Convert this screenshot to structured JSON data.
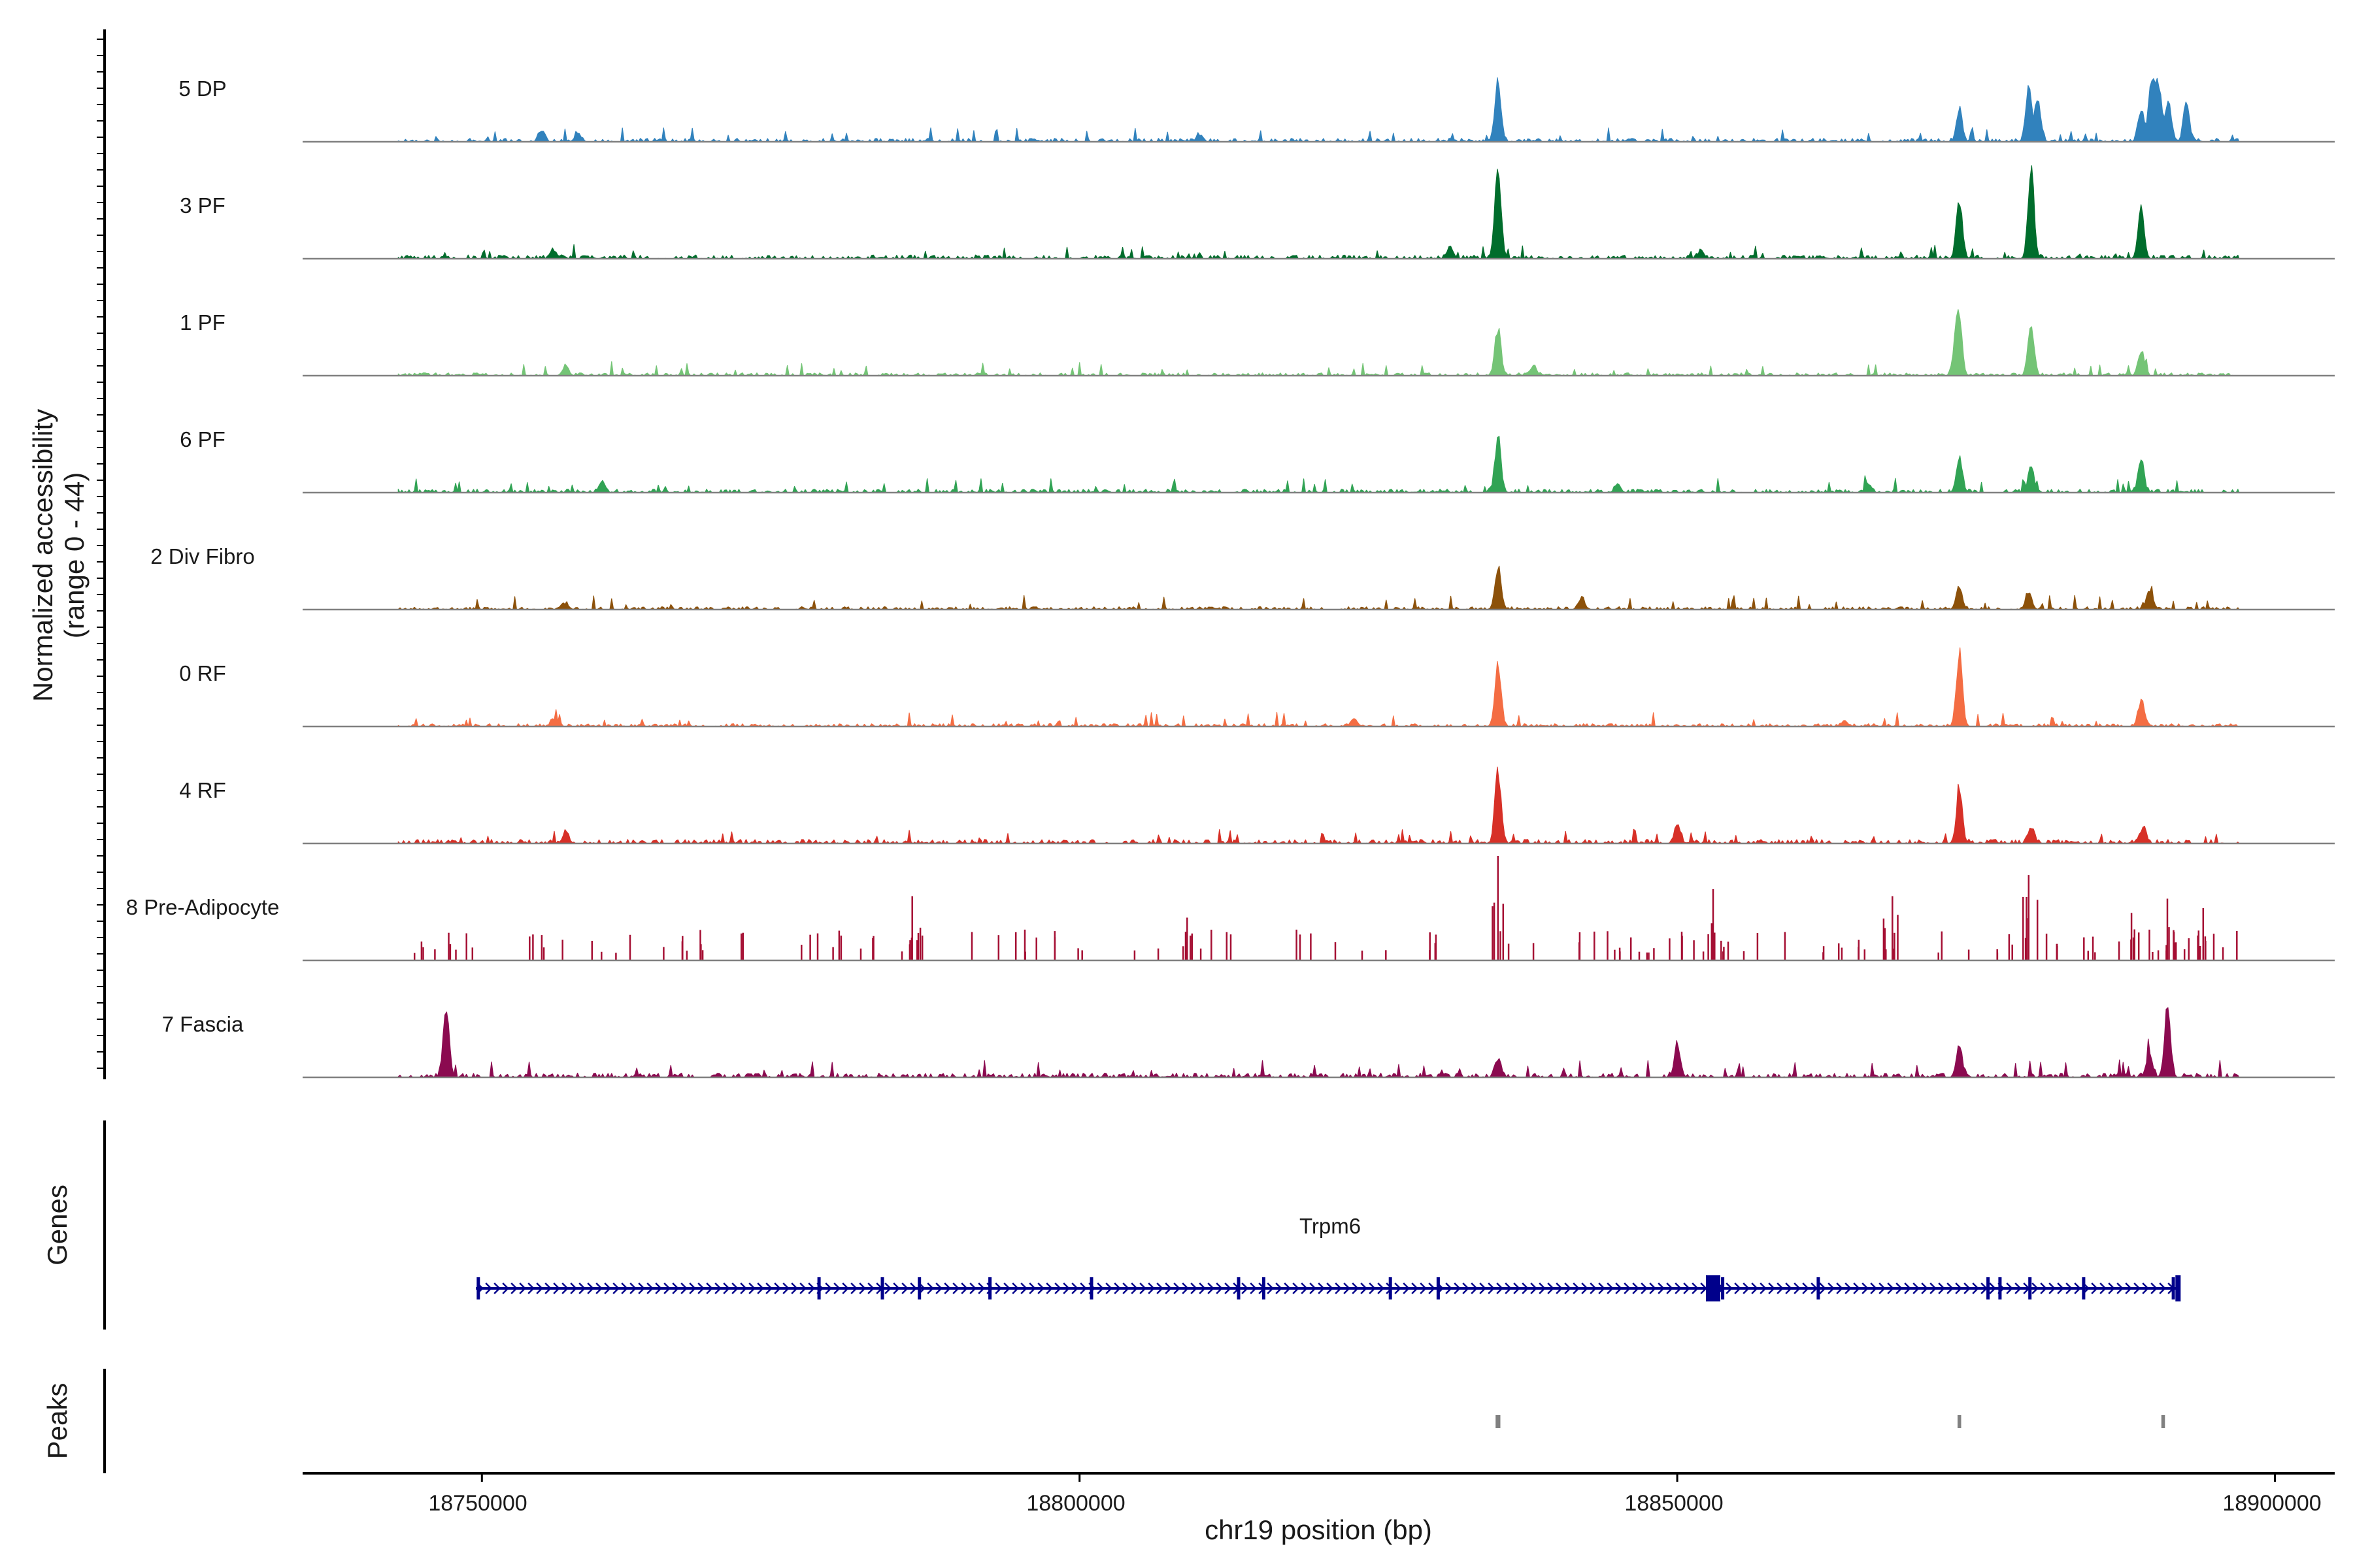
{
  "chart_data": {
    "type": "area",
    "title": "",
    "chromosome": "chr19",
    "xlabel": "chr19 position (bp)",
    "ylabel": "Normalized accessibility",
    "ylabel_range": "(range 0 - 44)",
    "ylim": [
      0,
      44
    ],
    "xlim": [
      18735000,
      18905000
    ],
    "xticks": [
      18750000,
      18800000,
      18850000,
      18900000
    ],
    "xtick_labels": [
      "18750000",
      "18800000",
      "18850000",
      "18900000"
    ],
    "signal_range": [
      18743000,
      18897000
    ],
    "tracks": [
      {
        "name": "5 DP",
        "color": "#3182bd",
        "style": "area",
        "baseline": 1.2,
        "noise": 4,
        "seed": 11,
        "peaks": [
          [
            18835000,
            28
          ],
          [
            18873600,
            15
          ],
          [
            18879400,
            24
          ],
          [
            18880200,
            18
          ],
          [
            18888800,
            14
          ],
          [
            18889700,
            30
          ],
          [
            18890300,
            26
          ],
          [
            18891100,
            20
          ],
          [
            18892600,
            18
          ],
          [
            18758000,
            4
          ],
          [
            18755000,
            5
          ],
          [
            18810000,
            3
          ]
        ]
      },
      {
        "name": "3 PF",
        "color": "#006d2c",
        "style": "area",
        "baseline": 1.3,
        "noise": 4,
        "seed": 23,
        "peaks": [
          [
            18835000,
            44
          ],
          [
            18873600,
            30
          ],
          [
            18879600,
            42
          ],
          [
            18888800,
            22
          ],
          [
            18831000,
            6
          ],
          [
            18756000,
            4
          ],
          [
            18852000,
            4
          ]
        ]
      },
      {
        "name": "1 PF",
        "color": "#74c476",
        "style": "area",
        "baseline": 1.0,
        "noise": 4,
        "seed": 37,
        "peaks": [
          [
            18835000,
            22
          ],
          [
            18873600,
            22
          ],
          [
            18879600,
            26
          ],
          [
            18888800,
            12
          ],
          [
            18873300,
            14
          ],
          [
            18757000,
            5
          ],
          [
            18838000,
            4
          ]
        ]
      },
      {
        "name": "6 PF",
        "color": "#31a354",
        "style": "area",
        "baseline": 1.2,
        "noise": 4,
        "seed": 41,
        "peaks": [
          [
            18835000,
            28
          ],
          [
            18873600,
            16
          ],
          [
            18879600,
            12
          ],
          [
            18888800,
            16
          ],
          [
            18760000,
            5
          ],
          [
            18845000,
            4
          ],
          [
            18866000,
            4
          ]
        ]
      },
      {
        "name": "2 Div Fibro",
        "color": "#8c510a",
        "style": "area",
        "baseline": 1.0,
        "noise": 4,
        "seed": 53,
        "peaks": [
          [
            18835000,
            20
          ],
          [
            18873600,
            11
          ],
          [
            18879400,
            8
          ],
          [
            18889500,
            9
          ],
          [
            18842000,
            6
          ],
          [
            18757000,
            3
          ]
        ]
      },
      {
        "name": "0 RF",
        "color": "#f46d43",
        "style": "area",
        "baseline": 1.0,
        "noise": 4,
        "seed": 67,
        "peaks": [
          [
            18835000,
            30
          ],
          [
            18873600,
            36
          ],
          [
            18888800,
            12
          ],
          [
            18823000,
            4
          ],
          [
            18756000,
            4
          ],
          [
            18864000,
            3
          ]
        ]
      },
      {
        "name": "4 RF",
        "color": "#d73027",
        "style": "area",
        "baseline": 1.4,
        "noise": 4,
        "seed": 79,
        "peaks": [
          [
            18835000,
            34
          ],
          [
            18873600,
            26
          ],
          [
            18850000,
            9
          ],
          [
            18879600,
            7
          ],
          [
            18889000,
            8
          ],
          [
            18757000,
            5
          ]
        ]
      },
      {
        "name": "8 Pre-Adipocyte",
        "color": "#a50f33",
        "style": "spikes",
        "baseline": 0,
        "noise": 0,
        "seed": 97,
        "peaks": [
          [
            18835000,
            44
          ],
          [
            18809000,
            18
          ],
          [
            18853000,
            30
          ],
          [
            18786000,
            27
          ],
          [
            18879400,
            36
          ],
          [
            18868000,
            27
          ],
          [
            18888000,
            20
          ],
          [
            18891000,
            26
          ],
          [
            18894000,
            22
          ]
        ]
      },
      {
        "name": "7 Fascia",
        "color": "#8b0a50",
        "style": "area",
        "baseline": 1.5,
        "noise": 5,
        "seed": 131,
        "peaks": [
          [
            18747000,
            32
          ],
          [
            18850000,
            14
          ],
          [
            18873600,
            14
          ],
          [
            18891000,
            32
          ],
          [
            18889500,
            12
          ],
          [
            18835000,
            8
          ]
        ]
      }
    ],
    "genes": {
      "title": "Genes",
      "items": [
        {
          "name": "Trpm6",
          "start": 18749500,
          "end": 18892000,
          "strand": "+",
          "color": "#00008b",
          "exons": [
            18749700,
            18778200,
            18783500,
            18786600,
            18792500,
            18801000,
            18813300,
            18815400,
            18826000,
            18830000,
            18853000,
            18853800,
            18861800,
            18876000,
            18877000,
            18879500,
            18884000,
            18891500
          ]
        }
      ]
    },
    "peaks": {
      "title": "Peaks",
      "color": "#808080",
      "regions": [
        [
          18834800,
          18835200
        ],
        [
          18873450,
          18873750
        ],
        [
          18890500,
          18890800
        ]
      ]
    }
  }
}
